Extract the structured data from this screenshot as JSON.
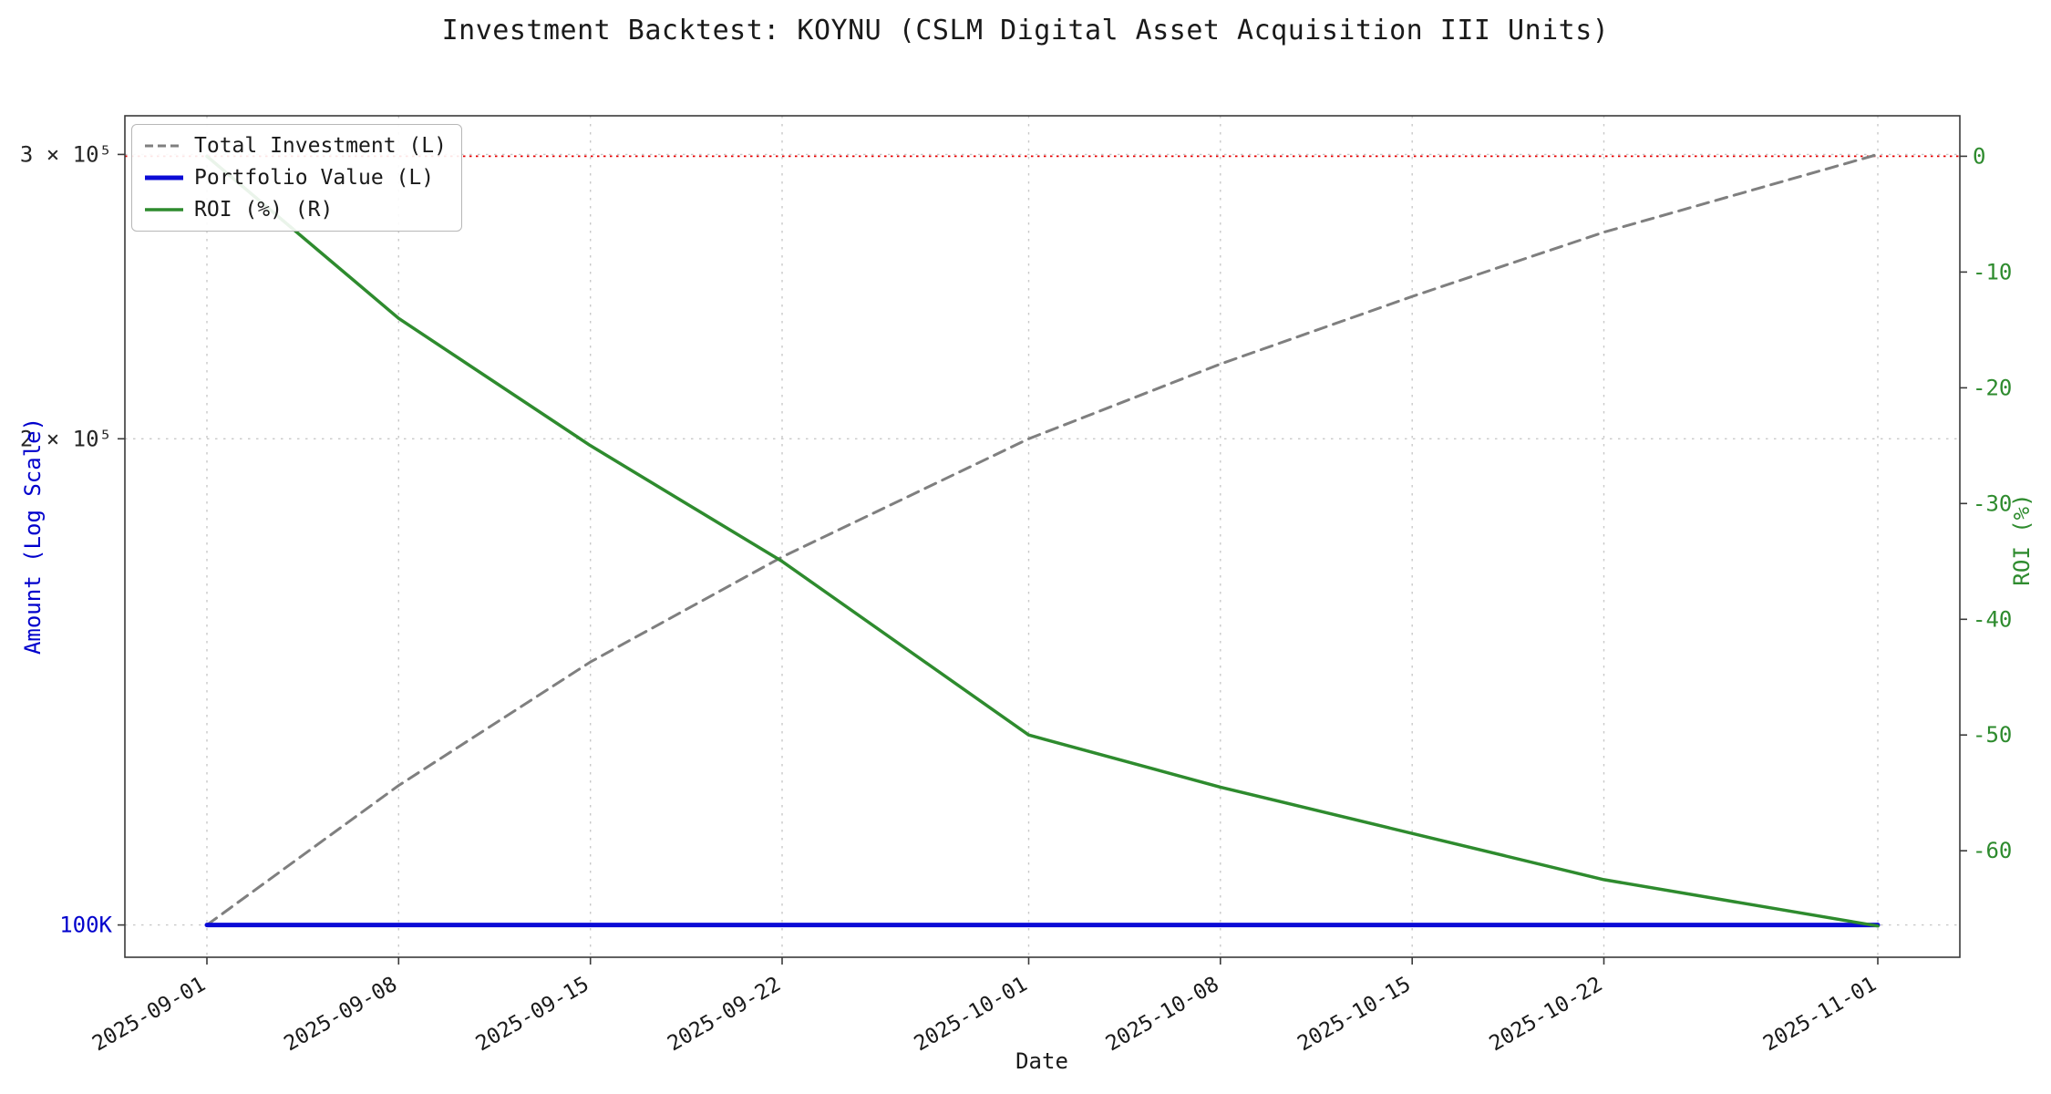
{
  "chart_data": {
    "type": "line",
    "title": "Investment Backtest: KOYNU (CSLM Digital Asset Acquisition III Units)",
    "xlabel": "Date",
    "x_tick_labels": [
      "2025-09-01",
      "2025-09-08",
      "2025-09-15",
      "2025-09-22",
      "2025-10-01",
      "2025-10-08",
      "2025-10-15",
      "2025-10-22",
      "2025-11-01"
    ],
    "x_tick_days": [
      0,
      7,
      14,
      21,
      30,
      37,
      44,
      51,
      61
    ],
    "x_range_days": [
      0,
      61
    ],
    "left_axis": {
      "label": "Amount (Log Scale)",
      "scale": "log",
      "color": "#0000cc",
      "range": [
        95500,
        317000
      ],
      "ticks": [
        {
          "value": 300000,
          "label": "3 × 10⁵",
          "color": "#262626"
        },
        {
          "value": 200000,
          "label": "2 × 10⁵",
          "color": "#262626"
        },
        {
          "value": 100000,
          "label": "100K",
          "color": "#0000cc"
        }
      ]
    },
    "right_axis": {
      "label": "ROI (%)",
      "scale": "linear",
      "color": "#2e8b2e",
      "range": [
        -69.2,
        3.5
      ],
      "ticks": [
        {
          "value": 0,
          "label": "0"
        },
        {
          "value": -10,
          "label": "-10"
        },
        {
          "value": -20,
          "label": "-20"
        },
        {
          "value": -30,
          "label": "-30"
        },
        {
          "value": -40,
          "label": "-40"
        },
        {
          "value": -50,
          "label": "-50"
        },
        {
          "value": -60,
          "label": "-60"
        }
      ]
    },
    "reference_line": {
      "axis": "right",
      "value": 0,
      "color": "#e60000",
      "style": "dotted"
    },
    "grid": {
      "show": true,
      "color": "#c9c9c9",
      "style": "dotted"
    },
    "legend": {
      "position": "upper left"
    },
    "series": [
      {
        "name": "Total Investment (L)",
        "axis": "left",
        "color": "#7f7f7f",
        "style": "dashed",
        "width": 3,
        "x_days": [
          0,
          7,
          14,
          21,
          30,
          37,
          44,
          51,
          61
        ],
        "values": [
          100000,
          122000,
          145500,
          169000,
          200000,
          222500,
          245000,
          268500,
          300000
        ]
      },
      {
        "name": "Portfolio Value (L)",
        "axis": "left",
        "color": "#0b0bd6",
        "style": "solid",
        "width": 5,
        "x_days": [
          0,
          7,
          14,
          21,
          30,
          37,
          44,
          51,
          61
        ],
        "values": [
          100000,
          100000,
          100000,
          100000,
          100000,
          100000,
          100000,
          100000,
          100000
        ]
      },
      {
        "name": "ROI (%) (R)",
        "axis": "right",
        "color": "#2e8b2e",
        "style": "solid",
        "width": 3.5,
        "x_days": [
          0,
          7,
          14,
          21,
          30,
          37,
          44,
          51,
          61
        ],
        "values": [
          0,
          -14,
          -25,
          -35,
          -50,
          -54.5,
          -58.5,
          -62.5,
          -66.5
        ]
      }
    ]
  }
}
